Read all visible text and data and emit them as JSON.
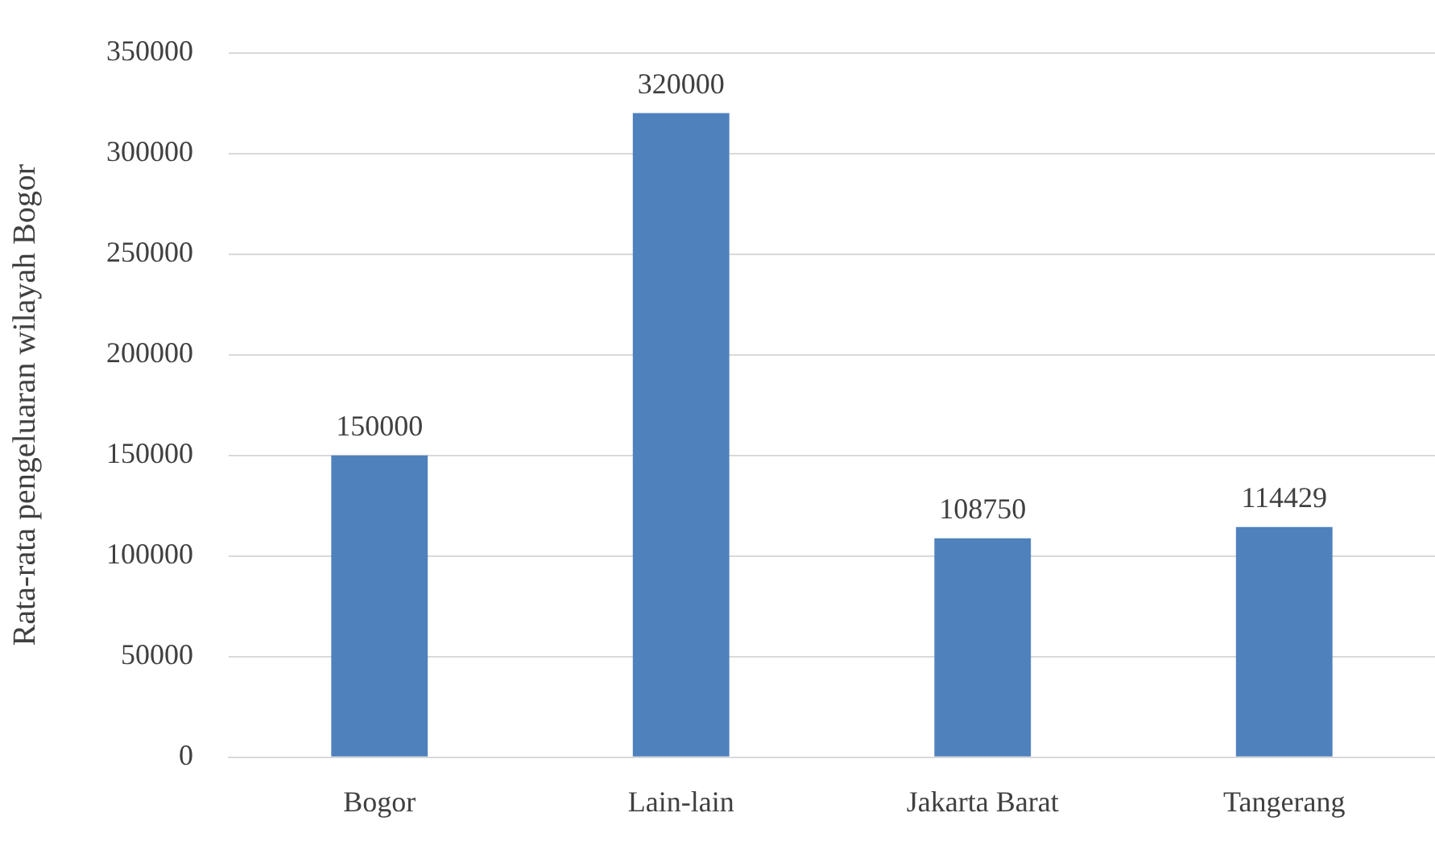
{
  "chart_data": {
    "type": "bar",
    "ylabel": "Rata-rata pengeluaran wilayah Bogor",
    "categories": [
      "Bogor",
      "Lain-lain",
      "Jakarta Barat",
      "Tangerang"
    ],
    "values": [
      150000,
      320000,
      108750,
      114429
    ],
    "color": "#4f81bd",
    "ylim": [
      0,
      350000
    ],
    "yticks": [
      0,
      50000,
      100000,
      150000,
      200000,
      250000,
      300000,
      350000
    ],
    "grid": "y",
    "data_labels": true,
    "legend": false
  }
}
